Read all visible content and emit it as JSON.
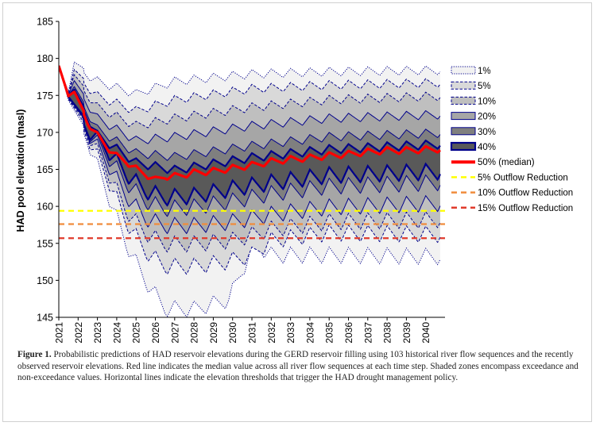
{
  "chart_data": {
    "type": "area",
    "title": "",
    "xlabel": "",
    "ylabel": "HAD pool elevation (masl)",
    "x_range": [
      2021,
      2041
    ],
    "ylim": [
      145,
      185
    ],
    "y_ticks": [
      "145",
      "150",
      "155",
      "160",
      "165",
      "170",
      "175",
      "180",
      "185"
    ],
    "x_ticks": [
      "2021",
      "2022",
      "2023",
      "2024",
      "2025",
      "2026",
      "2027",
      "2028",
      "2029",
      "2030",
      "2031",
      "2032",
      "2033",
      "2034",
      "2035",
      "2036",
      "2037",
      "2038",
      "2039",
      "2040"
    ],
    "seasonal_oscillation": true,
    "bands": [
      {
        "name": "1%",
        "fill": "#f2f2f2",
        "stroke": "#00008b",
        "dash": "dotted",
        "knots_upper": [
          [
            2021,
            179.0
          ],
          [
            2021.5,
            175.5
          ],
          [
            2021.8,
            179.5
          ],
          [
            2023,
            177.5
          ],
          [
            2025,
            175.8
          ],
          [
            2027,
            177.5
          ],
          [
            2031,
            178.5
          ],
          [
            2035,
            178.8
          ],
          [
            2040.75,
            179.0
          ]
        ],
        "knots_lower": [
          [
            2021,
            179.0
          ],
          [
            2021.5,
            174.3
          ],
          [
            2022.5,
            170
          ],
          [
            2023.5,
            163
          ],
          [
            2024.5,
            156
          ],
          [
            2025.5,
            151
          ],
          [
            2026.5,
            147.3
          ],
          [
            2028,
            147.2
          ],
          [
            2029.8,
            148.5
          ],
          [
            2030.5,
            152.5
          ],
          [
            2031.2,
            156
          ],
          [
            2032,
            154.5
          ],
          [
            2035,
            154.5
          ],
          [
            2040.75,
            154.3
          ]
        ]
      },
      {
        "name": "5%",
        "fill": "#d9d9d9",
        "stroke": "#00008b",
        "dash": "dashed",
        "knots_upper": [
          [
            2021,
            179.0
          ],
          [
            2021.5,
            175.2
          ],
          [
            2021.8,
            178.5
          ],
          [
            2023,
            175.5
          ],
          [
            2025,
            173.5
          ],
          [
            2027,
            175.0
          ],
          [
            2031,
            176.5
          ],
          [
            2035,
            177.0
          ],
          [
            2040.75,
            177.3
          ]
        ],
        "knots_lower": [
          [
            2021,
            179.0
          ],
          [
            2021.5,
            174.5
          ],
          [
            2022.5,
            170.5
          ],
          [
            2023.5,
            165
          ],
          [
            2024.5,
            159
          ],
          [
            2025.5,
            155
          ],
          [
            2026.5,
            153
          ],
          [
            2028,
            153
          ],
          [
            2029.5,
            153.5
          ],
          [
            2031,
            154.5
          ],
          [
            2032,
            156.5
          ],
          [
            2035,
            157.5
          ],
          [
            2040.75,
            157.3
          ]
        ]
      },
      {
        "name": "10%",
        "fill": "#bfbfbf",
        "stroke": "#00008b",
        "dash": "dashed",
        "knots_upper": [
          [
            2021,
            179.0
          ],
          [
            2021.5,
            175.2
          ],
          [
            2021.8,
            177.8
          ],
          [
            2023,
            174.0
          ],
          [
            2025,
            171.5
          ],
          [
            2027,
            172.5
          ],
          [
            2031,
            174.0
          ],
          [
            2035,
            175.0
          ],
          [
            2040.75,
            175.5
          ]
        ],
        "knots_lower": [
          [
            2021,
            179.0
          ],
          [
            2021.5,
            174.6
          ],
          [
            2022.5,
            171
          ],
          [
            2023.5,
            166
          ],
          [
            2024.5,
            160.5
          ],
          [
            2025.5,
            157.5
          ],
          [
            2026.5,
            156
          ],
          [
            2028,
            156
          ],
          [
            2030,
            156.5
          ],
          [
            2032,
            158
          ],
          [
            2035,
            159
          ],
          [
            2040.75,
            159.3
          ]
        ]
      },
      {
        "name": "20%",
        "fill": "#a6a6a6",
        "stroke": "#00008b",
        "dash": "solid",
        "knots_upper": [
          [
            2021,
            179.0
          ],
          [
            2021.5,
            175.1
          ],
          [
            2021.8,
            177.0
          ],
          [
            2023,
            172.5
          ],
          [
            2025,
            169.5
          ],
          [
            2027,
            170.0
          ],
          [
            2031,
            171.5
          ],
          [
            2035,
            172.5
          ],
          [
            2040.75,
            173.0
          ]
        ],
        "knots_lower": [
          [
            2021,
            179.0
          ],
          [
            2021.5,
            174.7
          ],
          [
            2022.5,
            171.2
          ],
          [
            2023.5,
            167
          ],
          [
            2024.5,
            162.5
          ],
          [
            2025.5,
            159.5
          ],
          [
            2026.5,
            158.5
          ],
          [
            2028,
            158.5
          ],
          [
            2030,
            159
          ],
          [
            2032,
            160
          ],
          [
            2035,
            161
          ],
          [
            2040.75,
            161.5
          ]
        ]
      },
      {
        "name": "30%",
        "fill": "#7f7f7f",
        "stroke": "#00008b",
        "dash": "solid",
        "knots_upper": [
          [
            2021,
            179.0
          ],
          [
            2021.5,
            175.0
          ],
          [
            2021.8,
            176.2
          ],
          [
            2023,
            171.0
          ],
          [
            2025,
            167.8
          ],
          [
            2027,
            167.3
          ],
          [
            2031,
            168.8
          ],
          [
            2035,
            170.0
          ],
          [
            2040.75,
            170.5
          ]
        ],
        "knots_lower": [
          [
            2021,
            179.0
          ],
          [
            2021.5,
            174.8
          ],
          [
            2022.5,
            171.3
          ],
          [
            2023.5,
            168
          ],
          [
            2024.5,
            164.3
          ],
          [
            2025.5,
            161.8
          ],
          [
            2026.5,
            160.8
          ],
          [
            2028,
            161
          ],
          [
            2030,
            161.8
          ],
          [
            2032,
            162.8
          ],
          [
            2035,
            163.8
          ],
          [
            2040.75,
            164.3
          ]
        ]
      },
      {
        "name": "40%",
        "fill": "#595959",
        "stroke": "#00008b",
        "dash": "solid",
        "knots_upper": [
          [
            2021,
            179.0
          ],
          [
            2021.5,
            174.9
          ],
          [
            2021.8,
            175.8
          ],
          [
            2023,
            170.2
          ],
          [
            2025,
            166.5
          ],
          [
            2027,
            165.5
          ],
          [
            2031,
            167.2
          ],
          [
            2035,
            168.3
          ],
          [
            2040.75,
            169.0
          ]
        ],
        "knots_lower": [
          [
            2021,
            179.0
          ],
          [
            2021.5,
            174.8
          ],
          [
            2022.5,
            171.5
          ],
          [
            2023.5,
            168.8
          ],
          [
            2024.5,
            165.5
          ],
          [
            2025.5,
            163.2
          ],
          [
            2026.5,
            162.3
          ],
          [
            2028,
            162.5
          ],
          [
            2030,
            163.5
          ],
          [
            2032,
            164.3
          ],
          [
            2035,
            165.3
          ],
          [
            2040.75,
            165.8
          ]
        ]
      }
    ],
    "series": [
      {
        "name": "50% (median)",
        "color": "#ff0000",
        "knots": [
          [
            2021,
            179.0
          ],
          [
            2021.5,
            174.9
          ],
          [
            2021.8,
            175.5
          ],
          [
            2022.5,
            171.8
          ],
          [
            2023,
            170.0
          ],
          [
            2023.5,
            168.5
          ],
          [
            2024,
            167.2
          ],
          [
            2024.5,
            166.5
          ],
          [
            2025,
            165.5
          ],
          [
            2025.5,
            164.8
          ],
          [
            2026,
            164.0
          ],
          [
            2026.5,
            164.5
          ],
          [
            2027,
            164.5
          ],
          [
            2028,
            165.0
          ],
          [
            2029,
            165.2
          ],
          [
            2030,
            165.6
          ],
          [
            2031,
            166.0
          ],
          [
            2032,
            166.5
          ],
          [
            2033,
            166.8
          ],
          [
            2034,
            167.0
          ],
          [
            2035,
            167.3
          ],
          [
            2036,
            167.5
          ],
          [
            2037,
            167.8
          ],
          [
            2038,
            168.0
          ],
          [
            2039,
            168.0
          ],
          [
            2040.75,
            168.2
          ]
        ]
      }
    ],
    "thresholds": [
      {
        "name": "5% Outflow Reduction",
        "value": 159.4,
        "color": "#ffff00"
      },
      {
        "name": "10% Outflow Reduction",
        "value": 157.6,
        "color": "#f08c3c"
      },
      {
        "name": "15% Outflow Reduction",
        "value": 155.7,
        "color": "#e03a2b"
      }
    ],
    "legend_placement": "right",
    "legend": [
      "1%",
      "5%",
      "10%",
      "20%",
      "30%",
      "40%",
      "50% (median)",
      "5% Outflow Reduction",
      "10% Outflow Reduction",
      "15% Outflow Reduction"
    ]
  },
  "caption": {
    "label": "Figure 1.",
    "text": " Probabilistic predictions of HAD reservoir elevations during the GERD reservoir filling using 103 historical river flow sequences and the recently observed reservoir elevations. Red line indicates the median value across all river flow sequences at each time step. Shaded zones encompass exceedance and non-exceedance values. Horizontal lines indicate the elevation thresholds that trigger the HAD drought management policy."
  }
}
